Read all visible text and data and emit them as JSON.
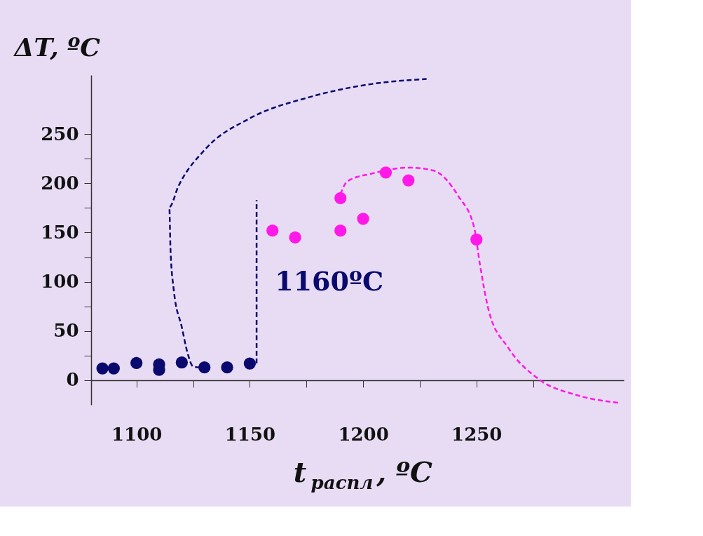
{
  "chart_data": {
    "type": "scatter",
    "xlabel": "t$_{распл}$, ºC",
    "ylabel": "ΔT, ºC",
    "xlim": [
      1080,
      1315
    ],
    "ylim": [
      -25,
      310
    ],
    "xticks": [
      1100,
      {
        "value": 1125,
        "label": null
      },
      1150,
      {
        "value": 1175,
        "label": null
      },
      1200,
      {
        "value": 1225,
        "label": null
      },
      1250,
      {
        "value": 1275,
        "label": null
      }
    ],
    "yticks": [
      0,
      {
        "value": 25,
        "label": null
      },
      50,
      {
        "value": 75,
        "label": null
      },
      100,
      {
        "value": 125,
        "label": null
      },
      150,
      {
        "value": 175,
        "label": null
      },
      200,
      {
        "value": 225,
        "label": null
      },
      250
    ],
    "grid": false,
    "legend": false,
    "marker": "circle",
    "series": [
      {
        "color": "#0a0a6e",
        "x": [
          1085,
          1090,
          1100,
          1110,
          1110,
          1120,
          1130,
          1140,
          1150
        ],
        "values": [
          12,
          12,
          17.5,
          16,
          10.5,
          18,
          13,
          13,
          17
        ]
      },
      {
        "color": "#ff19e8",
        "x": [
          1160,
          1170,
          1190,
          1190,
          1200,
          1210,
          1220,
          1250
        ],
        "values": [
          152,
          145,
          185,
          152,
          164,
          211,
          203,
          143
        ]
      },
      {
        "type": "line",
        "marker": "none",
        "line_style": "dashed",
        "color": "#0a0a6e",
        "x": [
          1128,
          1125,
          1122.5,
          1120,
          1116.5,
          1115,
          1114.5,
          1118.5,
          1130.5,
          1150,
          1177,
          1204,
          1228
        ],
        "values": [
          13,
          14,
          28,
          54,
          91,
          134,
          176,
          197,
          235,
          266,
          288,
          301,
          306
        ]
      },
      {
        "type": "line",
        "marker": "none",
        "line_style": "dashed",
        "color": "#ff19e8",
        "x": [
          1190,
          1193,
          1204,
          1220,
          1231,
          1242,
          1249,
          1251.5,
          1255.5,
          1264,
          1277.5,
          1294,
          1313
        ],
        "values": [
          189,
          202,
          210,
          216,
          213,
          187,
          155,
          118,
          70,
          33,
          1,
          -15,
          -23
        ]
      },
      {
        "type": "line",
        "marker": "none",
        "line_style": "dashed",
        "color": "#0a0a6e",
        "x": [
          1153,
          1153
        ],
        "values": [
          17,
          183
        ]
      }
    ],
    "annotations": [
      "1160ºC"
    ]
  }
}
